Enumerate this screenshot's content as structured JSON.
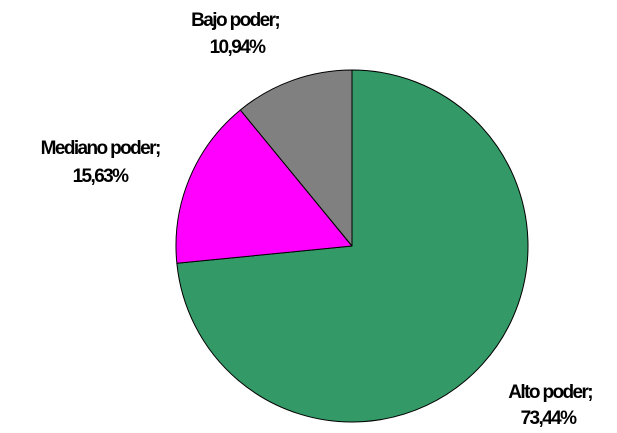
{
  "chart_data": {
    "type": "pie",
    "slices": [
      {
        "name": "Alto poder",
        "label": "Alto poder;",
        "value_label": "73,44%",
        "value": 73.44,
        "color": "#339966"
      },
      {
        "name": "Mediano poder",
        "label": "Mediano poder;",
        "value_label": "15,63%",
        "value": 15.63,
        "color": "#ff00ff"
      },
      {
        "name": "Bajo poder",
        "label": "Bajo poder;",
        "value_label": "10,94%",
        "value": 10.94,
        "color": "#808080"
      }
    ],
    "start_angle_deg": 0,
    "direction": "clockwise",
    "legend": "none",
    "data_labels": "category-and-percent"
  }
}
